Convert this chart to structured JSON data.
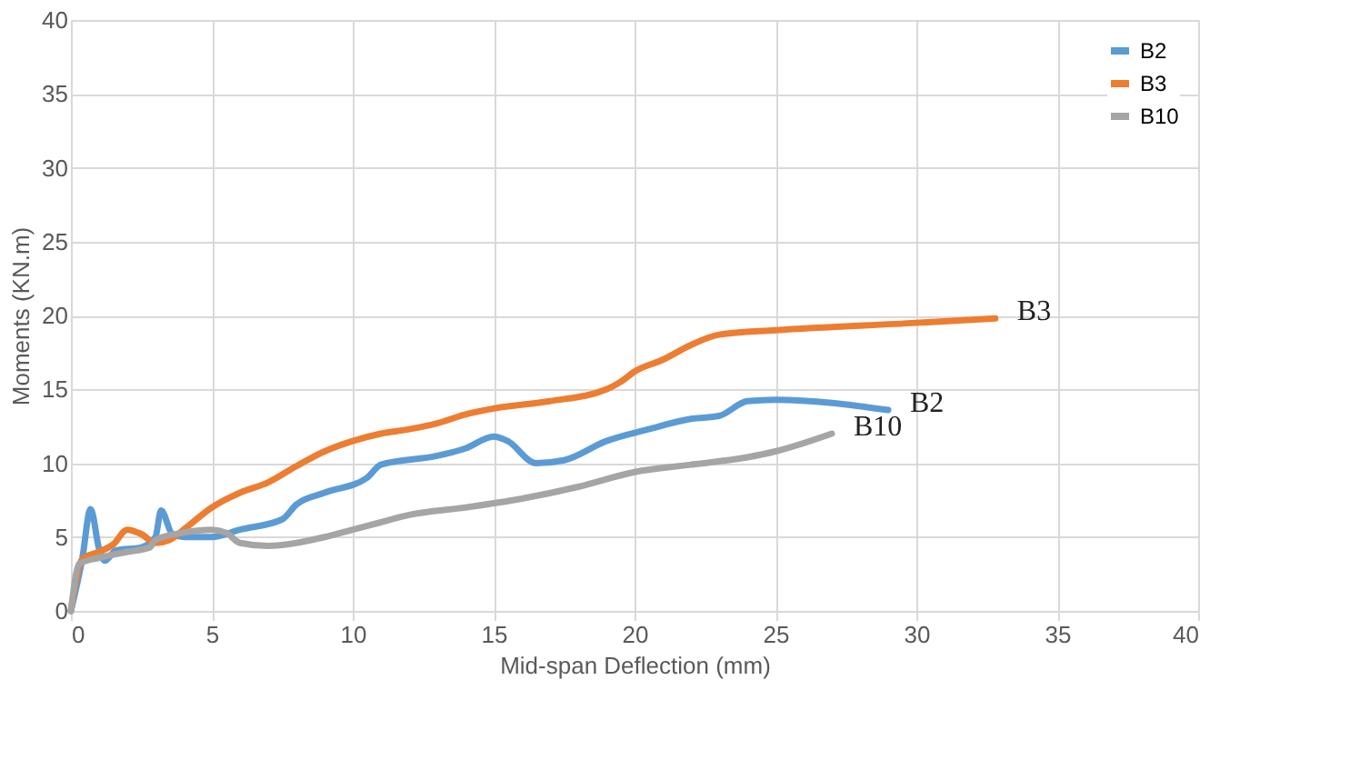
{
  "chart_data": {
    "type": "line",
    "xlabel": "Mid-span Deflection (mm)",
    "ylabel": "Moments (KN.m)",
    "xlim": [
      0,
      40
    ],
    "ylim": [
      0,
      40
    ],
    "xticks": [
      0,
      5,
      10,
      15,
      20,
      25,
      30,
      35,
      40
    ],
    "yticks": [
      0,
      5,
      10,
      15,
      20,
      25,
      30,
      35,
      40
    ],
    "grid": true,
    "legend": "top right",
    "line_style": "solid",
    "marker": "none",
    "series": [
      {
        "name": "B2",
        "color": "#5b9bd5",
        "x": [
          0,
          0.4,
          0.7,
          1.0,
          1.2,
          1.6,
          2.5,
          3.0,
          3.2,
          3.6,
          4,
          5,
          6,
          7.5,
          8,
          9,
          10.5,
          11,
          13,
          14,
          15,
          15.5,
          16.5,
          17.5,
          19,
          20.5,
          22,
          23,
          24,
          25,
          29
        ],
        "values": [
          0,
          3.5,
          6.9,
          4.2,
          3.4,
          4.1,
          4.3,
          5,
          6.8,
          5.2,
          5,
          5,
          5.5,
          6.2,
          7.2,
          8,
          9,
          9.9,
          10.5,
          11,
          11.8,
          11.5,
          10,
          10.2,
          11.5,
          12.3,
          13,
          13.2,
          14.2,
          14.3,
          13.6
        ]
      },
      {
        "name": "B3",
        "color": "#ed7d31",
        "x": [
          0,
          0.4,
          1,
          1.5,
          2,
          2.5,
          3,
          3.5,
          4,
          5,
          6,
          7,
          8,
          9,
          10,
          11,
          12,
          13,
          14,
          15,
          17,
          19,
          19.5,
          20,
          21,
          22,
          23,
          25,
          30,
          32.8
        ],
        "values": [
          0,
          3.5,
          4,
          4.5,
          5.5,
          5.2,
          4.6,
          4.8,
          5.5,
          7,
          8,
          8.7,
          9.8,
          10.8,
          11.5,
          12,
          12.3,
          12.7,
          13.3,
          13.7,
          14.2,
          15,
          15.5,
          16.2,
          17,
          18,
          18.7,
          19,
          19.5,
          19.8
        ]
      },
      {
        "name": "B10",
        "color": "#a5a5a5",
        "x": [
          0,
          0.3,
          1,
          2,
          2.8,
          3,
          4,
          5,
          5.5,
          6,
          7,
          8,
          9,
          10,
          11,
          12,
          14,
          16,
          18,
          20,
          22,
          24,
          25,
          27
        ],
        "values": [
          0,
          3.2,
          3.6,
          4,
          4.3,
          4.8,
          5.3,
          5.5,
          5.3,
          4.6,
          4.4,
          4.6,
          5,
          5.5,
          6,
          6.5,
          7,
          7.6,
          8.4,
          9.4,
          9.9,
          10.4,
          10.8,
          12
        ]
      }
    ]
  }
}
